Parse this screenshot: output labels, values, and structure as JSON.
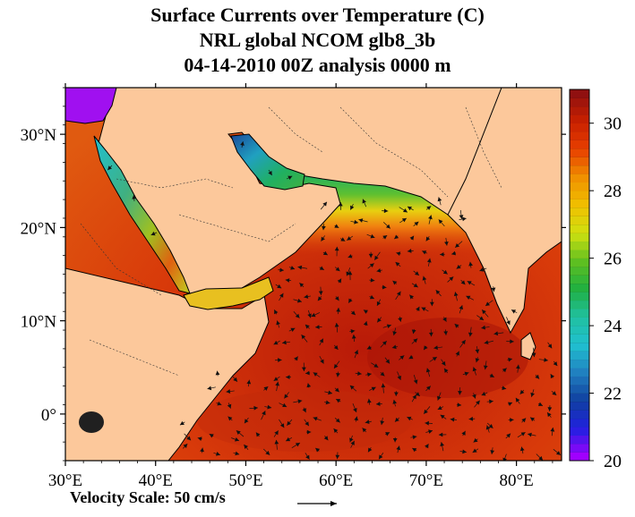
{
  "title": {
    "line1": "Surface Currents over Temperature (C)",
    "line2": "NRL global NCOM glb8_3b",
    "line3": "04-14-2010 00Z analysis   0000 m"
  },
  "map": {
    "lon_range": [
      30,
      85
    ],
    "lat_range": [
      -5,
      35
    ],
    "lon_ticks": [
      {
        "lon": 30,
        "label": "30°E"
      },
      {
        "lon": 40,
        "label": "40°E"
      },
      {
        "lon": 50,
        "label": "50°E"
      },
      {
        "lon": 60,
        "label": "60°E"
      },
      {
        "lon": 70,
        "label": "70°E"
      },
      {
        "lon": 80,
        "label": "80°E"
      }
    ],
    "lat_ticks": [
      {
        "lat": 30,
        "label": "30°N"
      },
      {
        "lat": 20,
        "label": "20°N"
      },
      {
        "lat": 10,
        "label": "10°N"
      },
      {
        "lat": 0,
        "label": "0°"
      }
    ],
    "land_color": "#fcc89b",
    "ocean_warm_color": "#cc2200"
  },
  "colorbar": {
    "min": 20,
    "max": 31,
    "tick_labels": [
      {
        "value": 30,
        "label": "30"
      },
      {
        "value": 28,
        "label": "28"
      },
      {
        "value": 26,
        "label": "26"
      },
      {
        "value": 24,
        "label": "24"
      },
      {
        "value": 22,
        "label": "22"
      },
      {
        "value": 20,
        "label": "20"
      }
    ],
    "stops": [
      "#a000ff",
      "#2020e0",
      "#1040a0",
      "#2080c0",
      "#20c0d0",
      "#20c0a0",
      "#20b040",
      "#60c020",
      "#d0e010",
      "#f0c000",
      "#f09000",
      "#e84000",
      "#c82000",
      "#901010"
    ]
  },
  "velocity_scale": {
    "label": "Velocity Scale:  50 cm/s"
  }
}
